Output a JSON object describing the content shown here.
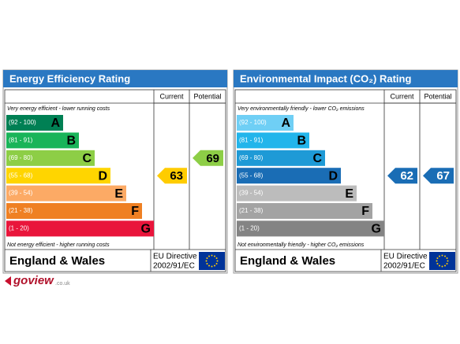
{
  "panels": [
    {
      "title": "Energy Efficiency Rating",
      "columns": [
        "Current",
        "Potential"
      ],
      "top_note": "Very energy efficient - lower running costs",
      "bottom_note": "Not energy efficient - higher running costs",
      "bands": [
        {
          "range": "(92 - 100)",
          "letter": "A",
          "color": "#008054"
        },
        {
          "range": "(81 - 91)",
          "letter": "B",
          "color": "#19b459"
        },
        {
          "range": "(69 - 80)",
          "letter": "C",
          "color": "#8dce46"
        },
        {
          "range": "(55 - 68)",
          "letter": "D",
          "color": "#ffd500"
        },
        {
          "range": "(39 - 54)",
          "letter": "E",
          "color": "#fcaa65"
        },
        {
          "range": "(21 - 38)",
          "letter": "F",
          "color": "#ef8023"
        },
        {
          "range": "(1 - 20)",
          "letter": "G",
          "color": "#e9153b"
        }
      ],
      "current": 63,
      "current_color": "#ffcc00",
      "potential": 69,
      "potential_color": "#8dce46",
      "region": "England & Wales",
      "directive": [
        "EU Directive",
        "2002/91/EC"
      ]
    },
    {
      "title": "Environmental Impact (CO₂) Rating",
      "columns": [
        "Current",
        "Potential"
      ],
      "top_note": "Very environmentally friendly - lower CO₂ emissions",
      "bottom_note": "Not environmentally friendly - higher CO₂ emissions",
      "bands": [
        {
          "range": "(92 - 100)",
          "letter": "A",
          "color": "#6fcff5"
        },
        {
          "range": "(81 - 91)",
          "letter": "B",
          "color": "#22b5eb"
        },
        {
          "range": "(69 - 80)",
          "letter": "C",
          "color": "#1e9ad6"
        },
        {
          "range": "(55 - 68)",
          "letter": "D",
          "color": "#1a6db5"
        },
        {
          "range": "(39 - 54)",
          "letter": "E",
          "color": "#bcbcbc"
        },
        {
          "range": "(21 - 38)",
          "letter": "F",
          "color": "#a3a3a3"
        },
        {
          "range": "(1 - 20)",
          "letter": "G",
          "color": "#848484"
        }
      ],
      "current": 62,
      "current_color": "#1a6db5",
      "potential": 67,
      "potential_color": "#1a6db5",
      "region": "England & Wales",
      "directive": [
        "EU Directive",
        "2002/91/EC"
      ]
    }
  ],
  "logo": {
    "name": "goview",
    "domain": ".co.uk"
  }
}
